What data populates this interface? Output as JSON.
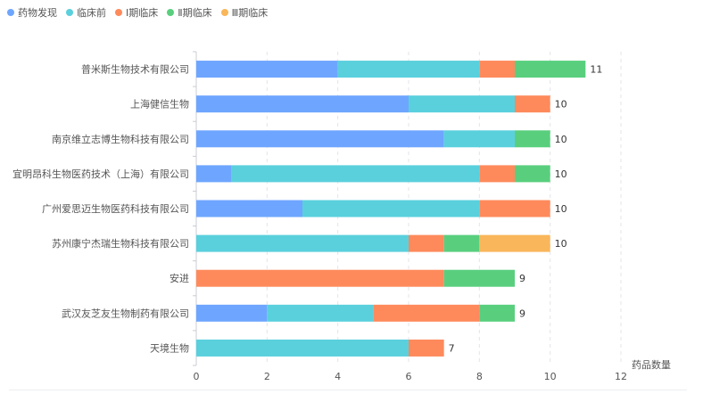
{
  "colors": {
    "series": [
      "#6ea6ff",
      "#5ad0dd",
      "#fe8a5c",
      "#59cf7e",
      "#f9b65a"
    ],
    "axis": "#c9ccd3",
    "grid": "#e3e5ea",
    "text": "#555555"
  },
  "chart_data": {
    "type": "bar",
    "orientation": "horizontal",
    "stacked": true,
    "title": "",
    "xlabel": "药品数量",
    "ylabel": "",
    "xlim": [
      0,
      12
    ],
    "xticks": [
      0,
      2,
      4,
      6,
      8,
      10,
      12
    ],
    "grid": true,
    "legend_position": "top-left",
    "categories": [
      "普米斯生物技术有限公司",
      "上海健信生物",
      "南京维立志博生物科技有限公司",
      "宜明昂科生物医药技术（上海）有限公司",
      "广州爱思迈生物医药科技有限公司",
      "苏州康宁杰瑞生物科技有限公司",
      "安进",
      "武汉友芝友生物制药有限公司",
      "天境生物"
    ],
    "series": [
      {
        "name": "药物发现",
        "values": [
          4,
          6,
          7,
          1,
          3,
          0,
          0,
          2,
          0
        ]
      },
      {
        "name": "临床前",
        "values": [
          4,
          3,
          2,
          7,
          5,
          6,
          0,
          3,
          6
        ]
      },
      {
        "name": "Ⅰ期临床",
        "values": [
          1,
          1,
          0,
          1,
          2,
          1,
          7,
          3,
          1
        ]
      },
      {
        "name": "Ⅱ期临床",
        "values": [
          2,
          0,
          1,
          1,
          0,
          1,
          2,
          1,
          0
        ]
      },
      {
        "name": "Ⅲ期临床",
        "values": [
          0,
          0,
          0,
          0,
          0,
          2,
          0,
          0,
          0
        ]
      }
    ],
    "totals": [
      11,
      10,
      10,
      10,
      10,
      10,
      9,
      9,
      7
    ]
  }
}
